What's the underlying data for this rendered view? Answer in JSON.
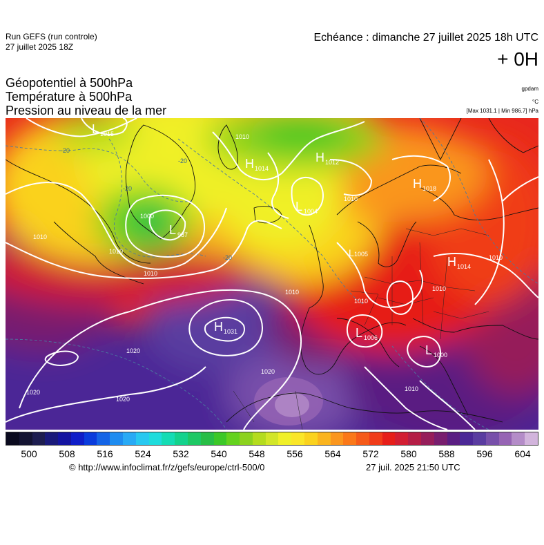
{
  "header": {
    "run_title": "Run GEFS (run controle)",
    "run_date": "27 juillet 2025 18Z",
    "echeance": "Echéance : dimanche 27 juillet 2025 18h UTC",
    "lead_time": "+ 0H",
    "params": [
      "Géopotentiel à 500hPa",
      "Température à 500hPa",
      "Pression au niveau de la mer"
    ],
    "unit_geopot": "gpdam",
    "unit_temp": "°C",
    "minmax": "[Max 1031.1 | Min 986.7] hPa"
  },
  "map": {
    "pressure_centers": [
      {
        "type": "L",
        "value": "1015"
      },
      {
        "type": "H",
        "value": "1014"
      },
      {
        "type": "H",
        "value": "1012"
      },
      {
        "type": "H",
        "value": "1018"
      },
      {
        "type": "L",
        "value": "1004"
      },
      {
        "type": "L",
        "value": "987"
      },
      {
        "type": "H",
        "value": "1014"
      },
      {
        "type": "L",
        "value": "1005"
      },
      {
        "type": "H",
        "value": "1031"
      },
      {
        "type": "L",
        "value": "1006"
      },
      {
        "type": "L",
        "value": "1000"
      }
    ],
    "isobar_labels": [
      "1010",
      "1010",
      "1000",
      "1010",
      "1010",
      "1010",
      "1020",
      "1020",
      "1020",
      "1020",
      "1010",
      "1010",
      "1010",
      "1010",
      "1010"
    ],
    "isotherm_labels": [
      "-20",
      "-20",
      "-20",
      "-20"
    ]
  },
  "legend": {
    "colors": [
      "#0a0a1e",
      "#141432",
      "#1e1e50",
      "#1a1a7a",
      "#1414a0",
      "#0f1ec8",
      "#0a3cdc",
      "#1464e6",
      "#1e8cf0",
      "#28aaf5",
      "#28c8f0",
      "#1edcdc",
      "#14dcb4",
      "#14d28c",
      "#1ec864",
      "#28be46",
      "#3cc828",
      "#64d21e",
      "#8cd21e",
      "#b4dc1e",
      "#d2e628",
      "#f0f028",
      "#fae628",
      "#fad21e",
      "#fab41e",
      "#fa961e",
      "#fa7819",
      "#f55a19",
      "#f03c19",
      "#e61e19",
      "#d21e32",
      "#b41e46",
      "#961e5a",
      "#781e6e",
      "#5a1e82",
      "#4b2896",
      "#5a3ca0",
      "#7850aa",
      "#9664b4",
      "#b48cc8",
      "#d2b4dc"
    ],
    "ticks": [
      "500",
      "508",
      "516",
      "524",
      "532",
      "540",
      "548",
      "556",
      "564",
      "572",
      "580",
      "588",
      "596",
      "604"
    ]
  },
  "footer": {
    "copyright": "© http://www.infoclimat.fr/z/gefs/europe/ctrl-500/0",
    "generated": "27 juil. 2025 21:50 UTC"
  }
}
